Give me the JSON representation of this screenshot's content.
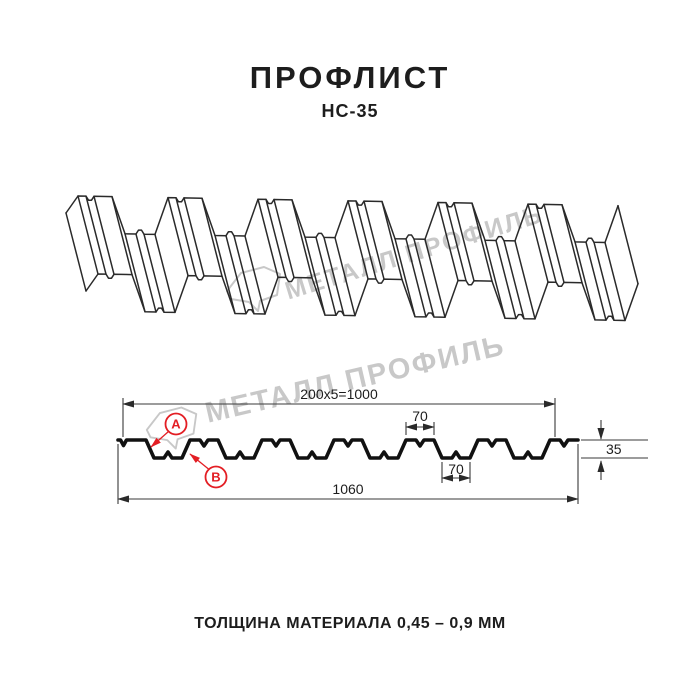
{
  "header": {
    "title": "ПРОФЛИСТ",
    "subtitle": "НС-35"
  },
  "watermark": {
    "text": "МЕТАЛЛ ПРОФИЛЬ",
    "color": "#c8c8c8"
  },
  "drawing": {
    "dims": {
      "coverage": "200x5=1000",
      "rib_top_width": "70",
      "rib_bottom_width": "70",
      "overall_width": "1060",
      "height": "35"
    },
    "callouts": {
      "a": "A",
      "b": "B"
    },
    "accent_color": "#e31e24",
    "line_color": "#2a2a2a"
  },
  "footer": {
    "caption": "ТОЛЩИНА МАТЕРИАЛА 0,45 – 0,9 ММ"
  }
}
